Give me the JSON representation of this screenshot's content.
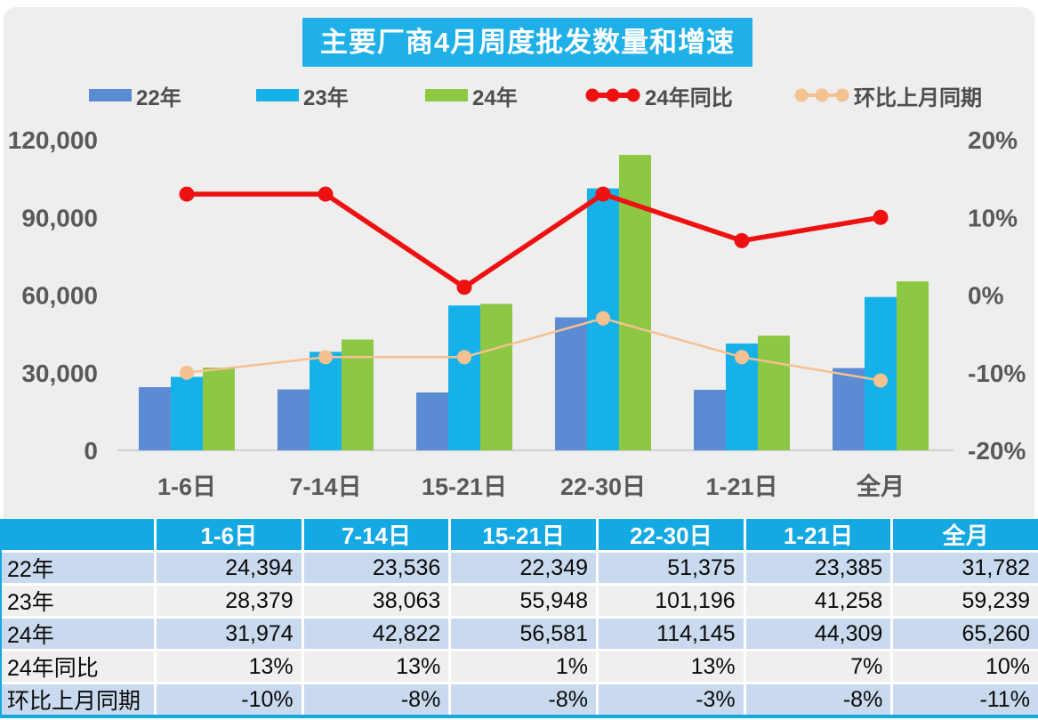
{
  "chart_data": {
    "type": "bar",
    "title": "主要厂商4月周度批发数量和增速",
    "subtitle": "",
    "categories": [
      "1-6日",
      "7-14日",
      "15-21日",
      "22-30日",
      "1-21日",
      "全月"
    ],
    "bar_series": [
      {
        "name": "22年",
        "color": "#5b8bd2",
        "values": [
          24394,
          23536,
          22349,
          51375,
          23385,
          31782
        ]
      },
      {
        "name": "23年",
        "color": "#17b1ea",
        "values": [
          28379,
          38063,
          55948,
          101196,
          41258,
          59239
        ]
      },
      {
        "name": "24年",
        "color": "#8cc843",
        "values": [
          31974,
          42822,
          56581,
          114145,
          44309,
          65260
        ]
      }
    ],
    "line_series": [
      {
        "name": "24年同比",
        "color": "#ee1111",
        "values_pct": [
          13,
          13,
          1,
          13,
          7,
          10
        ]
      },
      {
        "name": "环比上月同期",
        "color": "#f4c191",
        "values_pct": [
          -10,
          -8,
          -8,
          -3,
          -8,
          -11
        ]
      }
    ],
    "left_axis": {
      "min": 0,
      "max": 120000,
      "ticks": [
        {
          "label": "120,000",
          "value": 120000
        },
        {
          "label": "90,000",
          "value": 90000
        },
        {
          "label": "60,000",
          "value": 60000
        },
        {
          "label": "30,000",
          "value": 30000
        },
        {
          "label": "0",
          "value": 0
        }
      ]
    },
    "right_axis": {
      "min": -20,
      "max": 20,
      "ticks": [
        {
          "label": "20%",
          "value": 20
        },
        {
          "label": "10%",
          "value": 10
        },
        {
          "label": "0%",
          "value": 0
        },
        {
          "label": "-10%",
          "value": -10
        },
        {
          "label": "-20%",
          "value": -20
        }
      ]
    },
    "grid": "off",
    "legend_position": "top"
  },
  "table": {
    "header": [
      "",
      "1-6日",
      "7-14日",
      "15-21日",
      "22-30日",
      "1-21日",
      "全月"
    ],
    "rows": [
      {
        "label": "22年",
        "cells": [
          "24,394",
          "23,536",
          "22,349",
          "51,375",
          "23,385",
          "31,782"
        ]
      },
      {
        "label": "23年",
        "cells": [
          "28,379",
          "38,063",
          "55,948",
          "101,196",
          "41,258",
          "59,239"
        ]
      },
      {
        "label": "24年",
        "cells": [
          "31,974",
          "42,822",
          "56,581",
          "114,145",
          "44,309",
          "65,260"
        ]
      },
      {
        "label": "24年同比",
        "cells": [
          "13%",
          "13%",
          "1%",
          "13%",
          "7%",
          "10%"
        ]
      },
      {
        "label": "环比上月同期",
        "cells": [
          "-10%",
          "-8%",
          "-8%",
          "-3%",
          "-8%",
          "-11%"
        ]
      }
    ]
  },
  "palette": {
    "title_bg": "#1fb0e8",
    "table_header_bg": "#14a9e2",
    "table_row_blue": "#c9d9ee",
    "table_row_gray": "#f0efef",
    "panel_bg": "#efeeee",
    "axis_text": "#595959",
    "legend_text": "#4d4d4d"
  }
}
